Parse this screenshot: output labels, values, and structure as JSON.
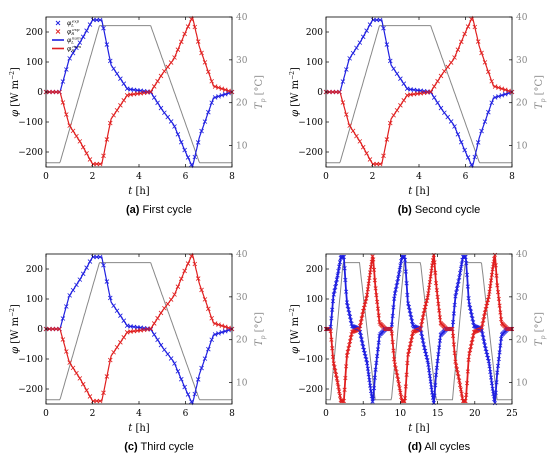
{
  "chart_data": [
    {
      "type": "line",
      "caption_letter": "(a)",
      "caption_text": " First cycle",
      "x_label": "t",
      "x_unit": "[h]",
      "y_label": "φ",
      "y_unit": "[W m",
      "y_unit_exp": "−2",
      "y_unit_close": "]",
      "y2_label": "T",
      "y2_sub": "p",
      "y2_unit": "[°C]",
      "xlim": [
        0,
        8
      ],
      "ylim": [
        -250,
        250
      ],
      "y2lim": [
        5,
        40
      ],
      "x_ticks": [
        "0",
        "2",
        "4",
        "6",
        "8"
      ],
      "y_ticks": [
        "−200",
        "−100",
        "0",
        "100",
        "200"
      ],
      "y2_ticks": [
        "10",
        "20",
        "30",
        "40"
      ],
      "legend": [
        {
          "sym": "φ",
          "sub": "L",
          "sup": "exp",
          "kind": "marker",
          "color": "#1f1fe0"
        },
        {
          "sym": "φ",
          "sub": "R",
          "sup": "exp",
          "kind": "marker",
          "color": "#e01f1f"
        },
        {
          "sym": "φ",
          "sub": "L",
          "sup": "num",
          "kind": "line",
          "color": "#1f1fe0"
        },
        {
          "sym": "φ",
          "sub": "R",
          "sup": "num",
          "kind": "line",
          "color": "#e01f1f"
        }
      ],
      "cycles": 1,
      "series": [
        {
          "name": "φ_L^exp",
          "color": "#1f1fe0",
          "style": "marker"
        },
        {
          "name": "φ_R^exp",
          "color": "#e01f1f",
          "style": "marker"
        },
        {
          "name": "φ_L^num",
          "color": "#1f1fe0",
          "style": "line"
        },
        {
          "name": "φ_R^num",
          "color": "#e01f1f",
          "style": "line"
        },
        {
          "name": "T_p",
          "color": "#888888",
          "style": "line",
          "axis": "right"
        }
      ],
      "phi_L_points": [
        [
          0,
          0
        ],
        [
          0.6,
          0
        ],
        [
          1,
          110
        ],
        [
          1.5,
          170
        ],
        [
          2,
          240
        ],
        [
          2.4,
          240
        ],
        [
          2.8,
          90
        ],
        [
          3.5,
          10
        ],
        [
          4.5,
          0
        ],
        [
          5,
          -60
        ],
        [
          5.5,
          -110
        ],
        [
          6,
          -200
        ],
        [
          6.3,
          -250
        ],
        [
          6.6,
          -150
        ],
        [
          7.2,
          -20
        ],
        [
          8,
          0
        ]
      ],
      "Tp_points": [
        [
          0,
          6
        ],
        [
          0.6,
          6
        ],
        [
          2.3,
          38
        ],
        [
          4.5,
          38
        ],
        [
          6.6,
          6
        ],
        [
          8,
          6
        ]
      ]
    },
    {
      "type": "line",
      "caption_letter": "(b)",
      "caption_text": " Second cycle",
      "x_label": "t",
      "x_unit": "[h]",
      "y_label": "φ",
      "y_unit": "[W m",
      "y_unit_exp": "−2",
      "y_unit_close": "]",
      "y2_label": "T",
      "y2_sub": "p",
      "y2_unit": "[°C]",
      "xlim": [
        0,
        8
      ],
      "ylim": [
        -250,
        250
      ],
      "y2lim": [
        5,
        40
      ],
      "x_ticks": [
        "0",
        "2",
        "4",
        "6",
        "8"
      ],
      "y_ticks": [
        "−200",
        "−100",
        "0",
        "100",
        "200"
      ],
      "y2_ticks": [
        "10",
        "20",
        "30",
        "40"
      ],
      "legend": [],
      "cycles": 1,
      "series": [
        {
          "name": "φ_L",
          "color": "#1f1fe0",
          "style": "marker"
        },
        {
          "name": "φ_R",
          "color": "#e01f1f",
          "style": "marker"
        },
        {
          "name": "T_p",
          "color": "#888888",
          "style": "line",
          "axis": "right"
        }
      ],
      "phi_L_points": [
        [
          0,
          0
        ],
        [
          0.6,
          0
        ],
        [
          1,
          110
        ],
        [
          1.5,
          170
        ],
        [
          2,
          240
        ],
        [
          2.4,
          240
        ],
        [
          2.8,
          90
        ],
        [
          3.5,
          10
        ],
        [
          4.5,
          0
        ],
        [
          5,
          -60
        ],
        [
          5.5,
          -110
        ],
        [
          6,
          -200
        ],
        [
          6.3,
          -250
        ],
        [
          6.6,
          -150
        ],
        [
          7.2,
          -20
        ],
        [
          8,
          0
        ]
      ],
      "Tp_points": [
        [
          0,
          6
        ],
        [
          0.6,
          6
        ],
        [
          2.3,
          38
        ],
        [
          4.5,
          38
        ],
        [
          6.6,
          6
        ],
        [
          8,
          6
        ]
      ]
    },
    {
      "type": "line",
      "caption_letter": "(c)",
      "caption_text": " Third cycle",
      "x_label": "t",
      "x_unit": "[h]",
      "y_label": "φ",
      "y_unit": "[W m",
      "y_unit_exp": "−2",
      "y_unit_close": "]",
      "y2_label": "T",
      "y2_sub": "p",
      "y2_unit": "[°C]",
      "xlim": [
        0,
        8
      ],
      "ylim": [
        -250,
        250
      ],
      "y2lim": [
        5,
        40
      ],
      "x_ticks": [
        "0",
        "2",
        "4",
        "6",
        "8"
      ],
      "y_ticks": [
        "−200",
        "−100",
        "0",
        "100",
        "200"
      ],
      "y2_ticks": [
        "10",
        "20",
        "30",
        "40"
      ],
      "legend": [],
      "cycles": 1,
      "series": [
        {
          "name": "φ_L",
          "color": "#1f1fe0",
          "style": "marker"
        },
        {
          "name": "φ_R",
          "color": "#e01f1f",
          "style": "marker"
        },
        {
          "name": "T_p",
          "color": "#888888",
          "style": "line",
          "axis": "right"
        }
      ],
      "phi_L_points": [
        [
          0,
          0
        ],
        [
          0.6,
          0
        ],
        [
          1,
          110
        ],
        [
          1.5,
          170
        ],
        [
          2,
          240
        ],
        [
          2.4,
          240
        ],
        [
          2.8,
          90
        ],
        [
          3.5,
          10
        ],
        [
          4.5,
          0
        ],
        [
          5,
          -60
        ],
        [
          5.5,
          -110
        ],
        [
          6,
          -200
        ],
        [
          6.3,
          -250
        ],
        [
          6.6,
          -150
        ],
        [
          7.2,
          -20
        ],
        [
          8,
          0
        ]
      ],
      "Tp_points": [
        [
          0,
          6
        ],
        [
          0.6,
          6
        ],
        [
          2.3,
          38
        ],
        [
          4.5,
          38
        ],
        [
          6.6,
          6
        ],
        [
          8,
          6
        ]
      ]
    },
    {
      "type": "line",
      "caption_letter": "(d)",
      "caption_text": " All cycles",
      "x_label": "t",
      "x_unit": "[h]",
      "y_label": "φ",
      "y_unit": "[W m",
      "y_unit_exp": "−2",
      "y_unit_close": "]",
      "y2_label": "T",
      "y2_sub": "p",
      "y2_unit": "[°C]",
      "xlim": [
        0,
        25
      ],
      "ylim": [
        -250,
        250
      ],
      "y2lim": [
        5,
        40
      ],
      "x_ticks": [
        "0",
        "5",
        "10",
        "15",
        "20",
        "25"
      ],
      "y_ticks": [
        "−200",
        "−100",
        "0",
        "100",
        "200"
      ],
      "y2_ticks": [
        "10",
        "20",
        "30",
        "40"
      ],
      "legend": [],
      "cycles": 3,
      "series": [
        {
          "name": "φ_L",
          "color": "#1f1fe0",
          "style": "marker"
        },
        {
          "name": "φ_R",
          "color": "#e01f1f",
          "style": "marker"
        },
        {
          "name": "T_p",
          "color": "#888888",
          "style": "line",
          "axis": "right"
        }
      ],
      "phi_L_points": [
        [
          0,
          0
        ],
        [
          0.6,
          0
        ],
        [
          1,
          110
        ],
        [
          1.5,
          170
        ],
        [
          2,
          240
        ],
        [
          2.4,
          240
        ],
        [
          2.8,
          90
        ],
        [
          3.5,
          10
        ],
        [
          4.5,
          0
        ],
        [
          5,
          -60
        ],
        [
          5.5,
          -110
        ],
        [
          6,
          -200
        ],
        [
          6.3,
          -250
        ],
        [
          6.6,
          -150
        ],
        [
          7.2,
          -20
        ],
        [
          8,
          0
        ]
      ],
      "Tp_points": [
        [
          0,
          6
        ],
        [
          0.6,
          6
        ],
        [
          2.3,
          38
        ],
        [
          4.5,
          38
        ],
        [
          6.6,
          6
        ],
        [
          8,
          6
        ]
      ]
    }
  ]
}
